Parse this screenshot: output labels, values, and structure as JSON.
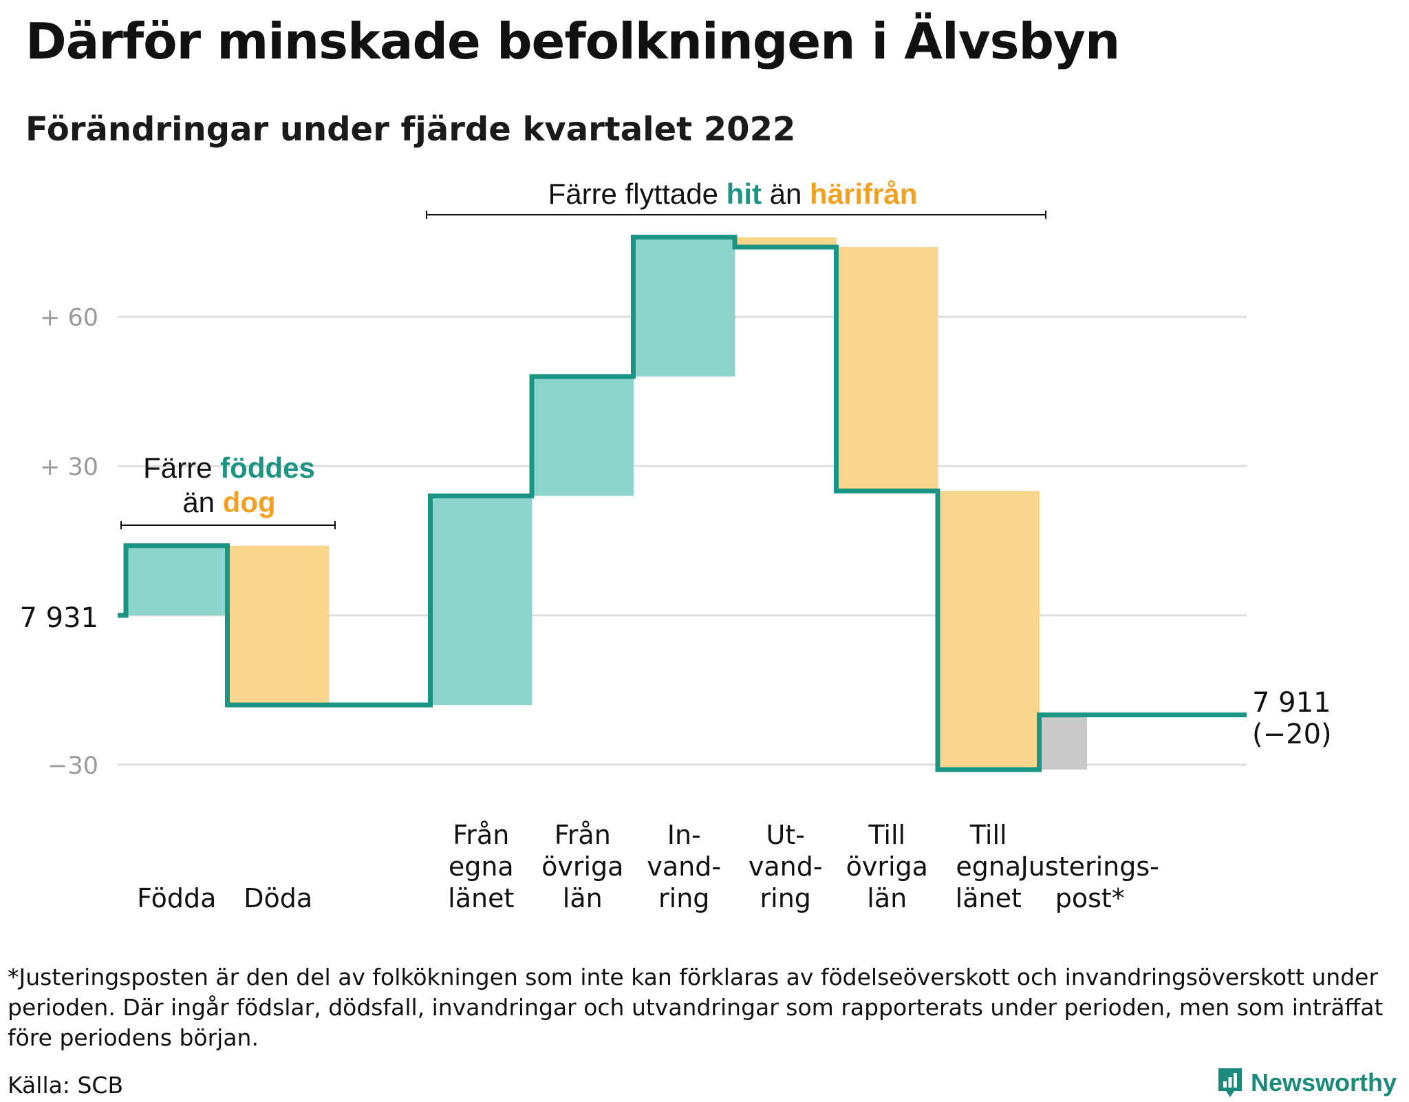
{
  "title": "Därför minskade befolkningen i Älvsbyn",
  "subtitle": "Förändringar under fjärde kvartalet 2022",
  "colors": {
    "increase_fill": "#8dd5cc",
    "decrease_fill": "#fad58d",
    "adjustment_fill": "#c9c9c9",
    "line": "#1b9583",
    "teal_text": "#1b9583",
    "orange_text": "#f0a120",
    "grid": "#dedede",
    "axis_label": "#9a9a9a"
  },
  "chart_data": {
    "type": "waterfall",
    "start_value": 7931,
    "end_value": 7911,
    "net_change": -20,
    "start_label": "7 931",
    "end_label_lines": [
      "7 911",
      "(−20)"
    ],
    "ylim": [
      -33,
      77
    ],
    "yticks": [
      {
        "value": 60,
        "label": "+ 60"
      },
      {
        "value": 30,
        "label": "+ 30"
      },
      {
        "value": -30,
        "label": "−30"
      }
    ],
    "baseline_gridline": 0,
    "grid": true,
    "steps": [
      {
        "label_lines": [
          "Födda"
        ],
        "change": 14,
        "kind": "increase"
      },
      {
        "label_lines": [
          "Döda"
        ],
        "change": -32,
        "kind": "decrease"
      },
      {
        "label_lines": [],
        "change": 0,
        "kind": "gap"
      },
      {
        "label_lines": [
          "Från",
          "egna",
          "länet"
        ],
        "change": 42,
        "kind": "increase"
      },
      {
        "label_lines": [
          "Från",
          "övriga",
          "län"
        ],
        "change": 24,
        "kind": "increase"
      },
      {
        "label_lines": [
          "In-",
          "vand-",
          "ring"
        ],
        "change": 28,
        "kind": "increase"
      },
      {
        "label_lines": [
          "Ut-",
          "vand-",
          "ring"
        ],
        "change": -2,
        "kind": "decrease"
      },
      {
        "label_lines": [
          "Till",
          "övriga",
          "län"
        ],
        "change": -49,
        "kind": "decrease"
      },
      {
        "label_lines": [
          "Till",
          "egna",
          "länet"
        ],
        "change": -56,
        "kind": "decrease"
      },
      {
        "label_lines": [
          "Justerings-",
          "post*"
        ],
        "change": 11,
        "kind": "adjustment"
      }
    ],
    "annotations": [
      {
        "id": "births",
        "lines": [
          [
            {
              "text": "Färre ",
              "color": "dark"
            },
            {
              "text": "föddes",
              "color": "teal"
            }
          ],
          [
            {
              "text": "än ",
              "color": "dark"
            },
            {
              "text": "dog",
              "color": "orange"
            }
          ]
        ]
      },
      {
        "id": "moves",
        "lines": [
          [
            {
              "text": "Färre flyttade ",
              "color": "dark"
            },
            {
              "text": "hit",
              "color": "teal"
            },
            {
              "text": " än ",
              "color": "dark"
            },
            {
              "text": "härifrån",
              "color": "orange"
            }
          ]
        ]
      }
    ]
  },
  "footnote": "*Justeringsposten är den del av folkökningen som inte kan förklaras av födelseöverskott och invandringsöverskott under perioden. Där ingår födslar, dödsfall, invandringar och utvandringar som rapporterats under perioden, men som inträffat före periodens början.",
  "source": "Källa: SCB",
  "brand": {
    "name": "Newsworthy",
    "icon": "newsworthy-logo-icon"
  }
}
